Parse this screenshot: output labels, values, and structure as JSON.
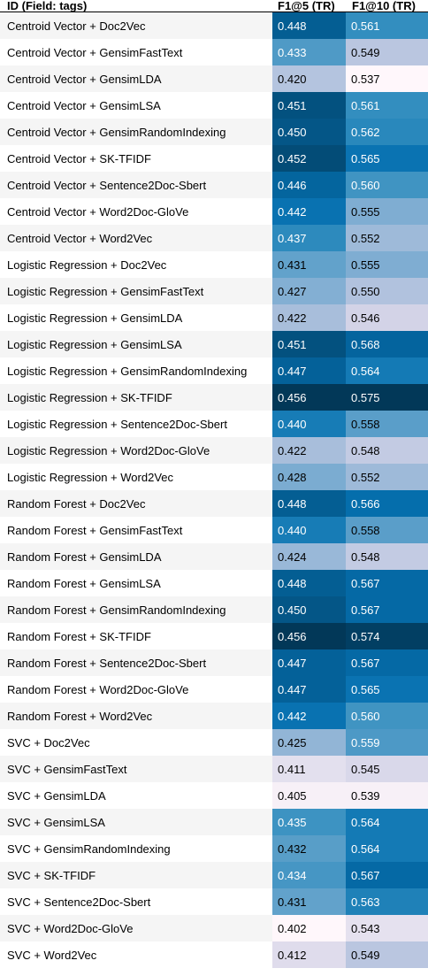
{
  "header": {
    "id": "ID (Field: tags)",
    "f1_5": "F1@5 (TR)",
    "f1_10": "F1@10 (TR)"
  },
  "rows": [
    {
      "id": "Centroid Vector + Doc2Vec",
      "f1_5": "0.448",
      "f1_10": "0.561"
    },
    {
      "id": "Centroid Vector + GensimFastText",
      "f1_5": "0.433",
      "f1_10": "0.549"
    },
    {
      "id": "Centroid Vector + GensimLDA",
      "f1_5": "0.420",
      "f1_10": "0.537"
    },
    {
      "id": "Centroid Vector + GensimLSA",
      "f1_5": "0.451",
      "f1_10": "0.561"
    },
    {
      "id": "Centroid Vector + GensimRandomIndexing",
      "f1_5": "0.450",
      "f1_10": "0.562"
    },
    {
      "id": "Centroid Vector + SK-TFIDF",
      "f1_5": "0.452",
      "f1_10": "0.565"
    },
    {
      "id": "Centroid Vector + Sentence2Doc-Sbert",
      "f1_5": "0.446",
      "f1_10": "0.560"
    },
    {
      "id": "Centroid Vector + Word2Doc-GloVe",
      "f1_5": "0.442",
      "f1_10": "0.555"
    },
    {
      "id": "Centroid Vector + Word2Vec",
      "f1_5": "0.437",
      "f1_10": "0.552"
    },
    {
      "id": "Logistic Regression + Doc2Vec",
      "f1_5": "0.431",
      "f1_10": "0.555"
    },
    {
      "id": "Logistic Regression + GensimFastText",
      "f1_5": "0.427",
      "f1_10": "0.550"
    },
    {
      "id": "Logistic Regression + GensimLDA",
      "f1_5": "0.422",
      "f1_10": "0.546"
    },
    {
      "id": "Logistic Regression + GensimLSA",
      "f1_5": "0.451",
      "f1_10": "0.568"
    },
    {
      "id": "Logistic Regression + GensimRandomIndexing",
      "f1_5": "0.447",
      "f1_10": "0.564"
    },
    {
      "id": "Logistic Regression + SK-TFIDF",
      "f1_5": "0.456",
      "f1_10": "0.575"
    },
    {
      "id": "Logistic Regression + Sentence2Doc-Sbert",
      "f1_5": "0.440",
      "f1_10": "0.558"
    },
    {
      "id": "Logistic Regression + Word2Doc-GloVe",
      "f1_5": "0.422",
      "f1_10": "0.548"
    },
    {
      "id": "Logistic Regression + Word2Vec",
      "f1_5": "0.428",
      "f1_10": "0.552"
    },
    {
      "id": "Random Forest + Doc2Vec",
      "f1_5": "0.448",
      "f1_10": "0.566"
    },
    {
      "id": "Random Forest + GensimFastText",
      "f1_5": "0.440",
      "f1_10": "0.558"
    },
    {
      "id": "Random Forest + GensimLDA",
      "f1_5": "0.424",
      "f1_10": "0.548"
    },
    {
      "id": "Random Forest + GensimLSA",
      "f1_5": "0.448",
      "f1_10": "0.567"
    },
    {
      "id": "Random Forest + GensimRandomIndexing",
      "f1_5": "0.450",
      "f1_10": "0.567"
    },
    {
      "id": "Random Forest + SK-TFIDF",
      "f1_5": "0.456",
      "f1_10": "0.574"
    },
    {
      "id": "Random Forest + Sentence2Doc-Sbert",
      "f1_5": "0.447",
      "f1_10": "0.567"
    },
    {
      "id": "Random Forest + Word2Doc-GloVe",
      "f1_5": "0.447",
      "f1_10": "0.565"
    },
    {
      "id": "Random Forest + Word2Vec",
      "f1_5": "0.442",
      "f1_10": "0.560"
    },
    {
      "id": "SVC + Doc2Vec",
      "f1_5": "0.425",
      "f1_10": "0.559"
    },
    {
      "id": "SVC + GensimFastText",
      "f1_5": "0.411",
      "f1_10": "0.545"
    },
    {
      "id": "SVC + GensimLDA",
      "f1_5": "0.405",
      "f1_10": "0.539"
    },
    {
      "id": "SVC + GensimLSA",
      "f1_5": "0.435",
      "f1_10": "0.564"
    },
    {
      "id": "SVC + GensimRandomIndexing",
      "f1_5": "0.432",
      "f1_10": "0.564"
    },
    {
      "id": "SVC + SK-TFIDF",
      "f1_5": "0.434",
      "f1_10": "0.567"
    },
    {
      "id": "SVC + Sentence2Doc-Sbert",
      "f1_5": "0.431",
      "f1_10": "0.563"
    },
    {
      "id": "SVC + Word2Doc-GloVe",
      "f1_5": "0.402",
      "f1_10": "0.543"
    },
    {
      "id": "SVC + Word2Vec",
      "f1_5": "0.412",
      "f1_10": "0.549"
    }
  ],
  "colors": {
    "scale": [
      "#fff7fb",
      "#ece7f2",
      "#d0d1e6",
      "#a6bddb",
      "#74a9cf",
      "#3690c0",
      "#0570b0",
      "#045a8d",
      "#023858"
    ],
    "row_odd_bg": "#f5f5f5",
    "row_even_bg": "#ffffff"
  }
}
